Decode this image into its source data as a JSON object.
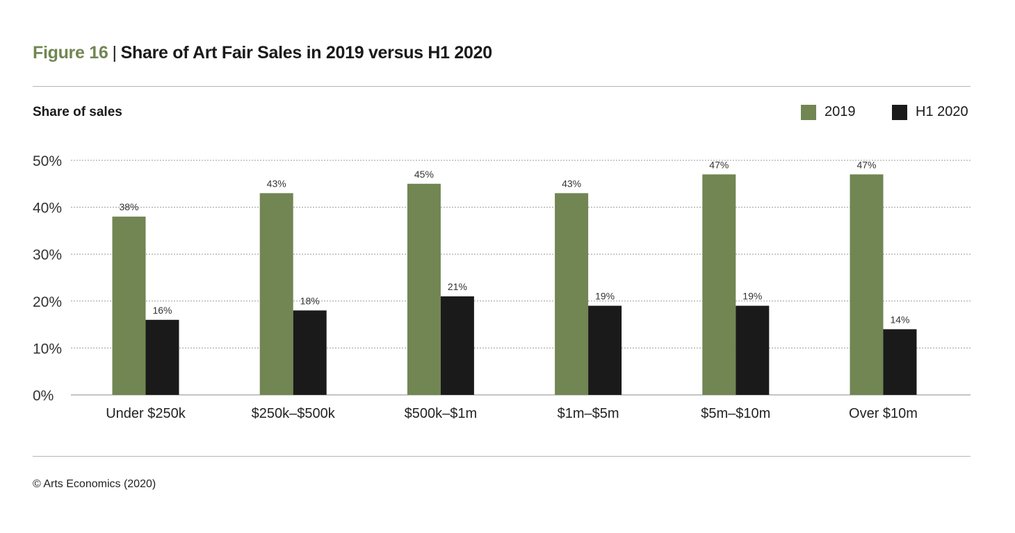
{
  "figure_label": "Figure 16",
  "separator": "|",
  "copyright": "© Arts Economics (2020)",
  "colors": {
    "2019": "#718653",
    "H1 2020": "#1a1a1a"
  },
  "chart_data": {
    "type": "bar",
    "title": "Share of Art Fair Sales in 2019 versus H1 2020",
    "ylabel": "Share of sales",
    "xlabel": "",
    "ylim": [
      0,
      50
    ],
    "yticks": [
      "0%",
      "10%",
      "20%",
      "30%",
      "40%",
      "50%"
    ],
    "ytick_values": [
      0,
      10,
      20,
      30,
      40,
      50
    ],
    "grid": true,
    "legend_position": "top-right",
    "categories": [
      "Under $250k",
      "$250k–$500k",
      "$500k–$1m",
      "$1m–$5m",
      "$5m–$10m",
      "Over $10m"
    ],
    "series": [
      {
        "name": "2019",
        "values": [
          38,
          43,
          45,
          43,
          47,
          47
        ],
        "labels": [
          "38%",
          "43%",
          "45%",
          "43%",
          "47%",
          "47%"
        ]
      },
      {
        "name": "H1 2020",
        "values": [
          16,
          18,
          21,
          19,
          19,
          14
        ],
        "labels": [
          "16%",
          "18%",
          "21%",
          "19%",
          "19%",
          "14%"
        ]
      }
    ]
  }
}
